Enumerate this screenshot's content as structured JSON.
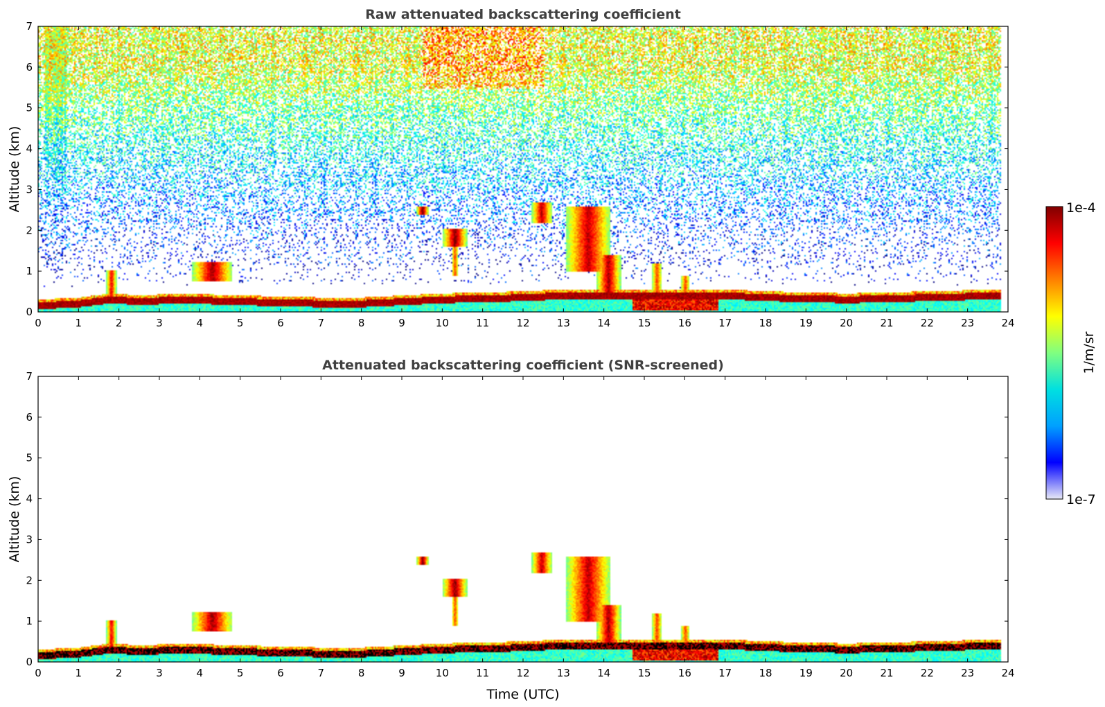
{
  "chart_data": [
    {
      "type": "heatmap",
      "title": "Raw attenuated backscattering coefficient",
      "xlabel": "",
      "ylabel": "Altitude (km)",
      "xlim": [
        0,
        24
      ],
      "ylim": [
        0,
        7
      ],
      "x_ticks": [
        0,
        1,
        2,
        3,
        4,
        5,
        6,
        7,
        8,
        9,
        10,
        11,
        12,
        13,
        14,
        15,
        16,
        17,
        18,
        19,
        20,
        21,
        22,
        23,
        24
      ],
      "y_ticks": [
        0,
        1,
        2,
        3,
        4,
        5,
        6,
        7
      ],
      "data_extent_hours": [
        0,
        23.8
      ],
      "features": [
        {
          "name": "boundary layer top",
          "t": [
            0,
            1,
            1.8,
            2.5,
            3.5,
            5,
            7,
            8,
            9,
            10,
            12,
            13,
            14,
            15,
            16,
            17,
            18,
            20,
            22,
            23.8
          ],
          "alt_km": [
            0.2,
            0.25,
            0.35,
            0.3,
            0.35,
            0.3,
            0.25,
            0.25,
            0.3,
            0.35,
            0.4,
            0.45,
            0.45,
            0.45,
            0.45,
            0.45,
            0.4,
            0.35,
            0.4,
            0.45
          ]
        },
        {
          "name": "cloud 9.5h",
          "t": 9.5,
          "alt_km": 2.5
        },
        {
          "name": "cloud 10.3h",
          "t": [
            10.0,
            10.6
          ],
          "alt_km": [
            1.7,
            2.0
          ]
        },
        {
          "name": "cloud 12.5h",
          "t": [
            12.2,
            12.7
          ],
          "alt_km": [
            2.2,
            2.6
          ]
        },
        {
          "name": "cloud 13-14.5h",
          "t": [
            13.0,
            14.5
          ],
          "alt_km": [
            0.5,
            2.6
          ]
        },
        {
          "name": "elevated layer 4h",
          "t": [
            3.8,
            4.8
          ],
          "alt_km": [
            0.8,
            1.2
          ]
        }
      ]
    },
    {
      "type": "heatmap",
      "title": "Attenuated backscattering coefficient (SNR-screened)",
      "xlabel": "Time (UTC)",
      "ylabel": "Altitude (km)",
      "xlim": [
        0,
        24
      ],
      "ylim": [
        0,
        7
      ],
      "x_ticks": [
        0,
        1,
        2,
        3,
        4,
        5,
        6,
        7,
        8,
        9,
        10,
        11,
        12,
        13,
        14,
        15,
        16,
        17,
        18,
        19,
        20,
        21,
        22,
        23,
        24
      ],
      "y_ticks": [
        0,
        1,
        2,
        3,
        4,
        5,
        6,
        7
      ],
      "data_extent_hours": [
        0,
        23.8
      ]
    }
  ],
  "colorbar": {
    "label": "1/m/sr",
    "min_label": "1e-7",
    "max_label": "1e-4",
    "colormap": "jet",
    "colors": [
      "#e8eaf6",
      "#0000ff",
      "#00a0ff",
      "#00e0e0",
      "#80ff80",
      "#ffff00",
      "#ff8000",
      "#ff0000",
      "#800000"
    ]
  }
}
